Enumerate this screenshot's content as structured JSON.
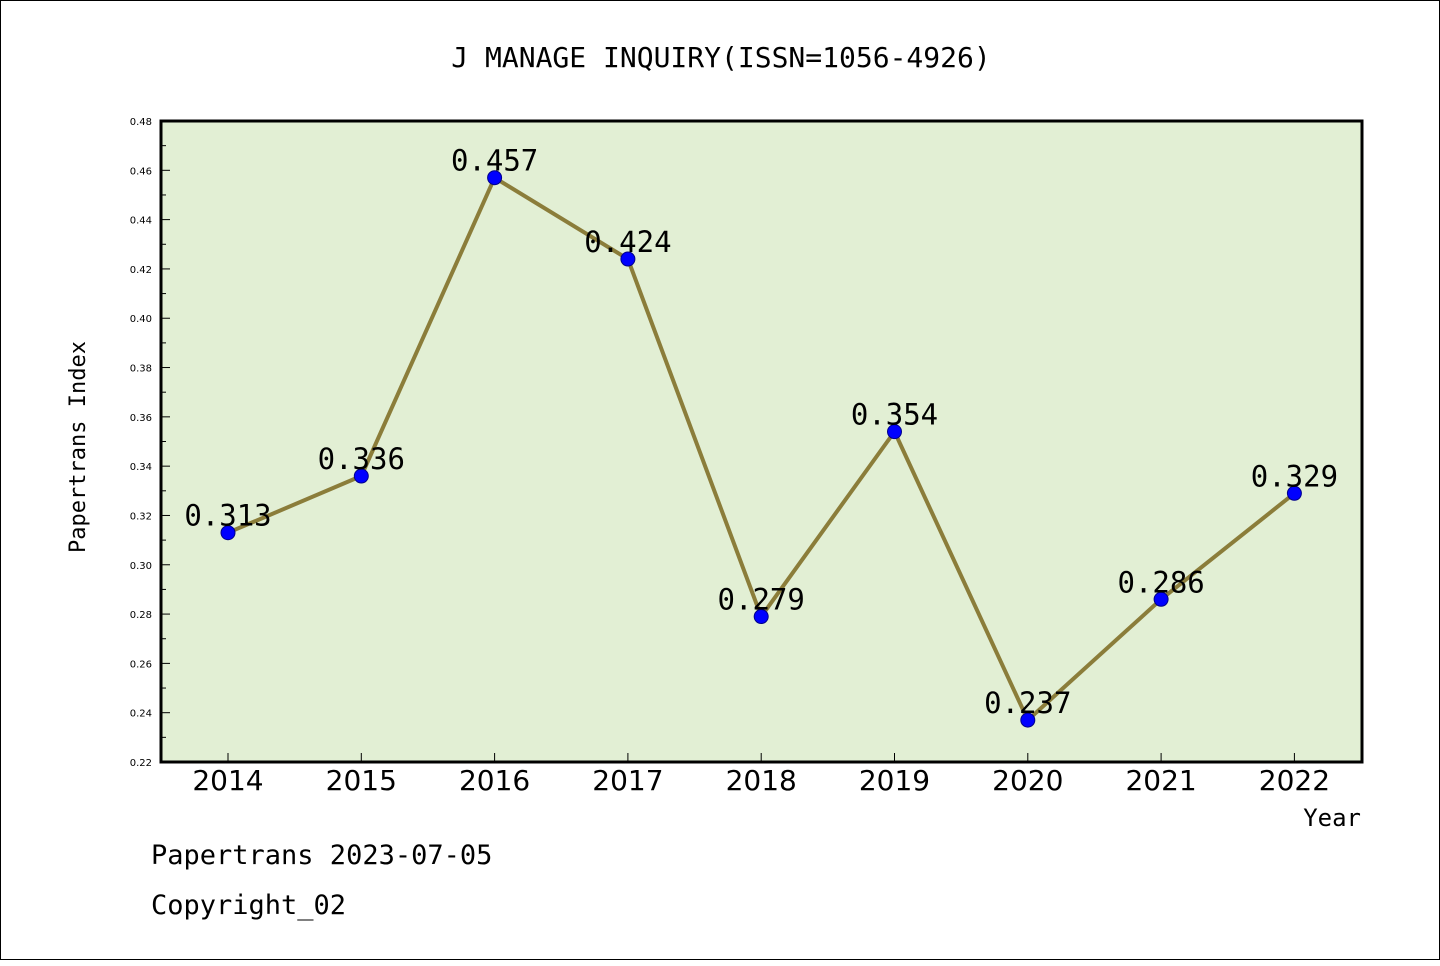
{
  "chart_data": {
    "type": "line",
    "title": "J MANAGE INQUIRY(ISSN=1056-4926)",
    "xlabel": "Year",
    "ylabel": "Papertrans Index",
    "categories": [
      "2014",
      "2015",
      "2016",
      "2017",
      "2018",
      "2019",
      "2020",
      "2021",
      "2022"
    ],
    "series": [
      {
        "values": [
          0.313,
          0.336,
          0.457,
          0.424,
          0.279,
          0.354,
          0.237,
          0.286,
          0.329
        ],
        "labels": [
          "0.313",
          "0.336",
          "0.457",
          "0.424",
          "0.279",
          "0.354",
          "0.237",
          "0.286",
          "0.329"
        ]
      }
    ],
    "ylim": [
      0.22,
      0.48
    ],
    "yticks": [
      "0.22",
      "0.24",
      "0.26",
      "0.28",
      "0.30",
      "0.32",
      "0.34",
      "0.36",
      "0.38",
      "0.40",
      "0.42",
      "0.44",
      "0.46",
      "0.48"
    ],
    "grid": false,
    "legend": "none",
    "colors": {
      "plot_background": "#e2efd4",
      "line": "#8b7d3a",
      "marker": "#0000ff"
    }
  },
  "footer": {
    "line1": "Papertrans 2023-07-05",
    "line2": "Copyright_02"
  }
}
